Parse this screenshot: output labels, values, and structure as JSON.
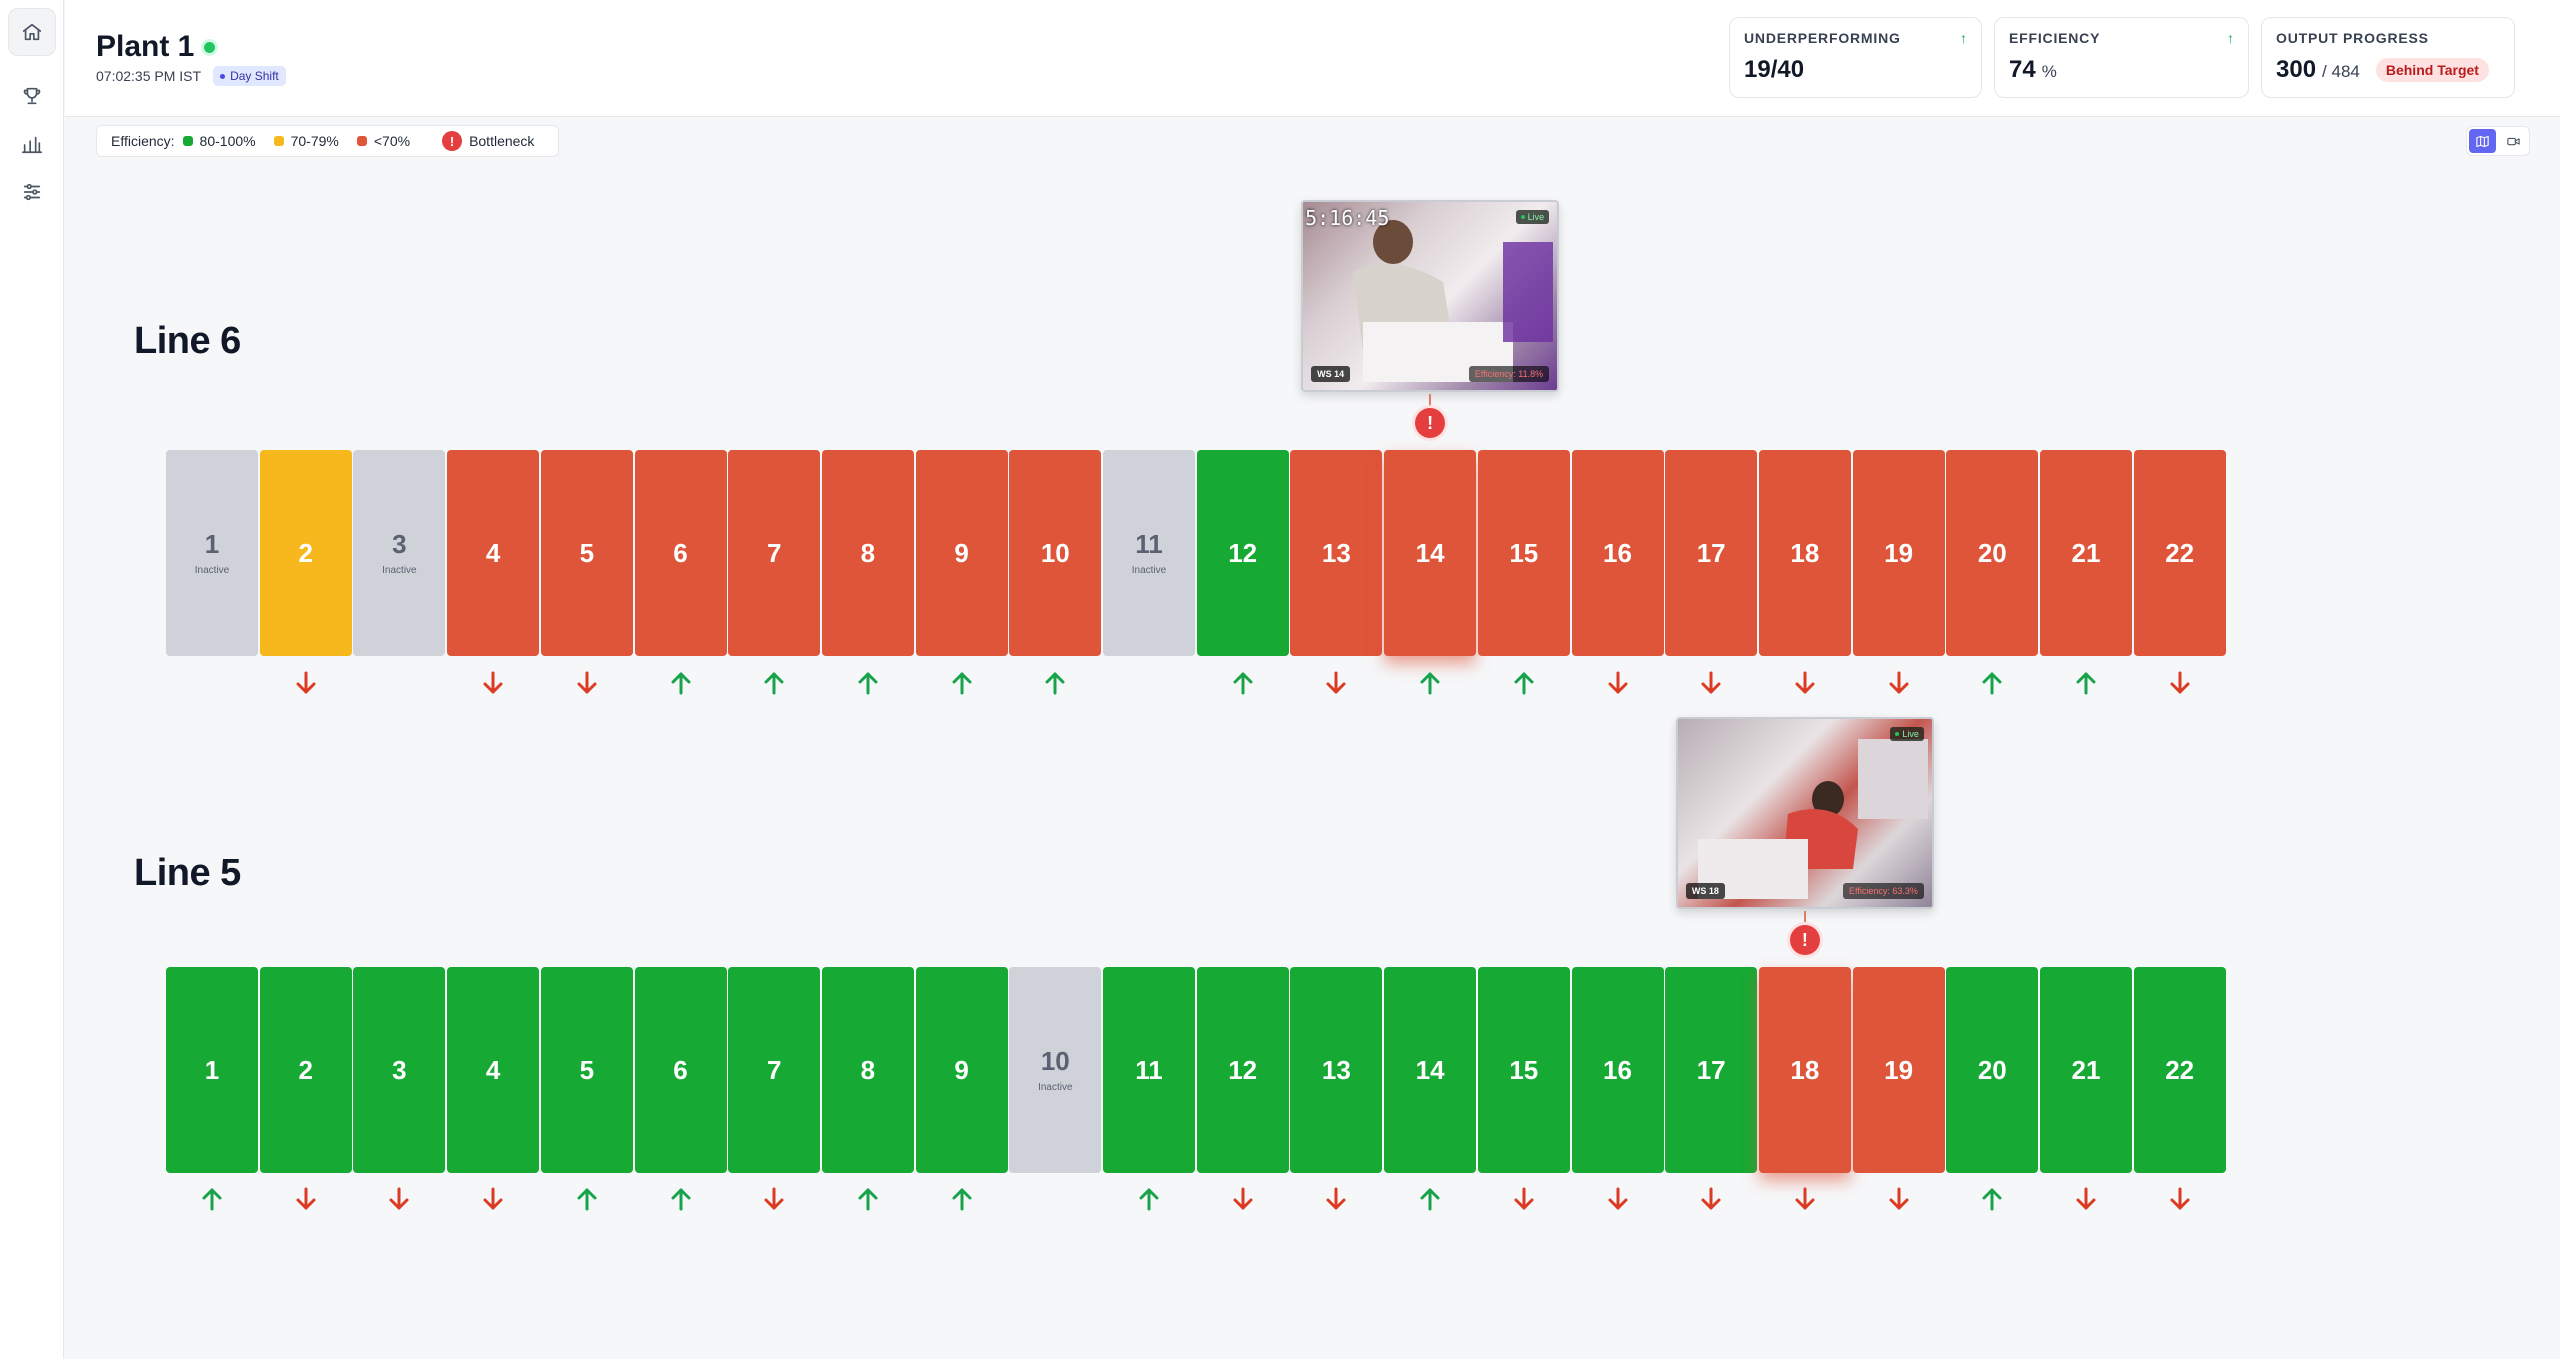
{
  "plant": {
    "title": "Plant 1",
    "time": "07:02:35 PM IST",
    "shift": "Day Shift"
  },
  "kpis": {
    "underperforming": {
      "label": "UNDERPERFORMING",
      "trend": "↑",
      "value": "19/40"
    },
    "efficiency": {
      "label": "EFFICIENCY",
      "trend": "↑",
      "value": "74",
      "unit": "%"
    },
    "output": {
      "label": "OUTPUT PROGRESS",
      "value": "300",
      "target": "/ 484",
      "status": "Behind Target"
    }
  },
  "legend": {
    "label": "Efficiency:",
    "high": "80-100%",
    "mid": "70-79%",
    "low": "<70%",
    "bottleneck": "Bottleneck",
    "bottleneck_mark": "!",
    "colors": {
      "high": "#16a934",
      "mid": "#f6b81d",
      "low": "#de553a"
    }
  },
  "inactive_label": "Inactive",
  "lines": [
    {
      "title": "Line 6",
      "stations": [
        {
          "num": "1",
          "status": "inactive",
          "trend": null
        },
        {
          "num": "2",
          "status": "yellow",
          "trend": "down"
        },
        {
          "num": "3",
          "status": "inactive",
          "trend": null
        },
        {
          "num": "4",
          "status": "red",
          "trend": "down"
        },
        {
          "num": "5",
          "status": "red",
          "trend": "down"
        },
        {
          "num": "6",
          "status": "red",
          "trend": "up"
        },
        {
          "num": "7",
          "status": "red",
          "trend": "up"
        },
        {
          "num": "8",
          "status": "red",
          "trend": "up"
        },
        {
          "num": "9",
          "status": "red",
          "trend": "up"
        },
        {
          "num": "10",
          "status": "red",
          "trend": "up"
        },
        {
          "num": "11",
          "status": "inactive",
          "trend": null
        },
        {
          "num": "12",
          "status": "green",
          "trend": "up"
        },
        {
          "num": "13",
          "status": "red",
          "trend": "down"
        },
        {
          "num": "14",
          "status": "red",
          "trend": "up",
          "bottleneck": true
        },
        {
          "num": "15",
          "status": "red",
          "trend": "up"
        },
        {
          "num": "16",
          "status": "red",
          "trend": "down"
        },
        {
          "num": "17",
          "status": "red",
          "trend": "down"
        },
        {
          "num": "18",
          "status": "red",
          "trend": "down"
        },
        {
          "num": "19",
          "status": "red",
          "trend": "down"
        },
        {
          "num": "20",
          "status": "red",
          "trend": "up"
        },
        {
          "num": "21",
          "status": "red",
          "trend": "up"
        },
        {
          "num": "22",
          "status": "red",
          "trend": "down"
        }
      ],
      "camera": {
        "timestamp": "5:16:45",
        "live": "Live",
        "ws": "WS 14",
        "efficiency": "Efficiency: 11.8%"
      }
    },
    {
      "title": "Line 5",
      "stations": [
        {
          "num": "1",
          "status": "green",
          "trend": "up"
        },
        {
          "num": "2",
          "status": "green",
          "trend": "down"
        },
        {
          "num": "3",
          "status": "green",
          "trend": "down"
        },
        {
          "num": "4",
          "status": "green",
          "trend": "down"
        },
        {
          "num": "5",
          "status": "green",
          "trend": "up"
        },
        {
          "num": "6",
          "status": "green",
          "trend": "up"
        },
        {
          "num": "7",
          "status": "green",
          "trend": "down"
        },
        {
          "num": "8",
          "status": "green",
          "trend": "up"
        },
        {
          "num": "9",
          "status": "green",
          "trend": "up"
        },
        {
          "num": "10",
          "status": "inactive",
          "trend": null
        },
        {
          "num": "11",
          "status": "green",
          "trend": "up"
        },
        {
          "num": "12",
          "status": "green",
          "trend": "down"
        },
        {
          "num": "13",
          "status": "green",
          "trend": "down"
        },
        {
          "num": "14",
          "status": "green",
          "trend": "up"
        },
        {
          "num": "15",
          "status": "green",
          "trend": "down"
        },
        {
          "num": "16",
          "status": "green",
          "trend": "down"
        },
        {
          "num": "17",
          "status": "green",
          "trend": "down"
        },
        {
          "num": "18",
          "status": "red",
          "trend": "down",
          "bottleneck": true
        },
        {
          "num": "19",
          "status": "red",
          "trend": "down"
        },
        {
          "num": "20",
          "status": "green",
          "trend": "up"
        },
        {
          "num": "21",
          "status": "green",
          "trend": "down"
        },
        {
          "num": "22",
          "status": "green",
          "trend": "down"
        }
      ],
      "camera": {
        "timestamp": "",
        "live": "Live",
        "ws": "WS 18",
        "efficiency": "Efficiency: 63.3%"
      }
    }
  ]
}
